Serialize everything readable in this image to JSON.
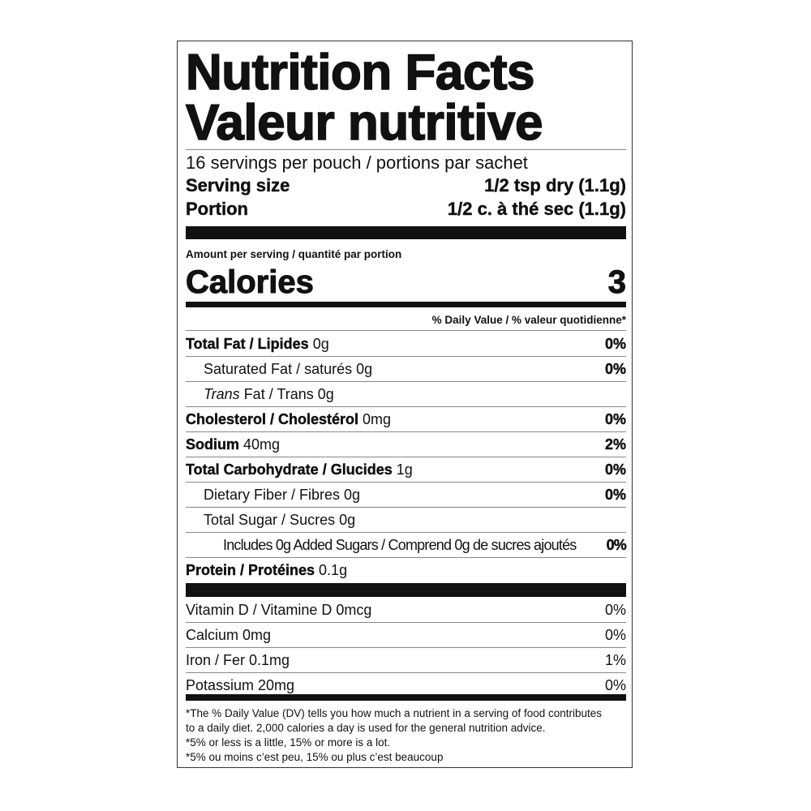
{
  "title_en": "Nutrition Facts",
  "title_fr": "Valeur nutritive",
  "servings": "16 servings per pouch / portions par sachet",
  "serving_size": {
    "label": "Serving size",
    "value": "1/2 tsp dry (1.1g)"
  },
  "portion": {
    "label": "Portion",
    "value": "1/2 c. à thé sec (1.1g)"
  },
  "amount_per_serving": "Amount per serving / quantité par portion",
  "calories": {
    "label": "Calories",
    "value": "3"
  },
  "dv_header": "% Daily Value / % valeur quotidienne*",
  "nutrients": [
    {
      "name": "Total Fat / Lipides",
      "amount": " 0g",
      "dv": "0%"
    },
    {
      "name": "Saturated Fat / saturés 0g",
      "amount": "",
      "dv": "0%"
    },
    {
      "name_italic": "Trans",
      "name": " Fat / Trans 0g",
      "amount": "",
      "dv": ""
    },
    {
      "name": "Cholesterol / Cholestérol",
      "amount": " 0mg",
      "dv": "0%"
    },
    {
      "name": "Sodium",
      "amount": " 40mg",
      "dv": "2%"
    },
    {
      "name": "Total Carbohydrate / Glucides",
      "amount": " 1g",
      "dv": "0%"
    },
    {
      "name": "Dietary Fiber / Fibres 0g",
      "amount": "",
      "dv": "0%"
    },
    {
      "name": "Total Sugar / Sucres 0g",
      "amount": "",
      "dv": ""
    },
    {
      "name": "Includes 0g Added Sugars / Comprend 0g de sucres ajoutés",
      "amount": "",
      "dv": "0%"
    },
    {
      "name": "Protein / Protéines",
      "amount": " 0.1g",
      "dv": ""
    }
  ],
  "vitamins": [
    {
      "name": "Vitamin D / Vitamine D 0mcg",
      "dv": "0%"
    },
    {
      "name": "Calcium 0mg",
      "dv": "0%"
    },
    {
      "name": "Iron / Fer 0.1mg",
      "dv": "1%"
    },
    {
      "name": "Potassium 20mg",
      "dv": "0%"
    }
  ],
  "footnote": [
    "*The % Daily Value (DV) tells you how much a nutrient in a serving of food contributes",
    "to a daily diet. 2,000 calories a day is used for the general nutrition advice.",
    "*5% or less is a little, 15% or more is a lot.",
    "*5% ou moins c’est peu, 15% ou plus c’est beaucoup"
  ]
}
